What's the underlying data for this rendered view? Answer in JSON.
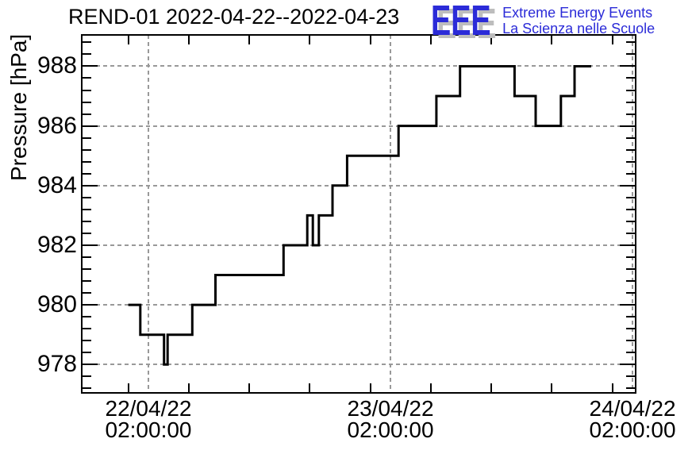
{
  "header": {
    "title": "REND-01 2022-04-22--2022-04-23",
    "logo": {
      "acronym": "EEE",
      "line1": "Extreme Energy Events",
      "line2": "La Scienza nelle Scuole",
      "text_color": "#2b2bd8",
      "shadow_color": "#bdbdbd"
    }
  },
  "chart_data": {
    "type": "line",
    "line_style": "step-post",
    "title": "REND-01 2022-04-22--2022-04-23",
    "xlabel": "",
    "ylabel": "Pressure [hPa]",
    "x_unit": "hours since 2022-04-22 00:00:00",
    "xlim": [
      -4.61,
      50.31
    ],
    "ylim": [
      977.05,
      989.05
    ],
    "grid": "dashed-major",
    "grid_color": "#999999",
    "line_color": "#000000",
    "frame_color": "#000000",
    "y_major_ticks": [
      978,
      980,
      982,
      984,
      986,
      988
    ],
    "y_minor_step": 0.4,
    "x_minor_step_hours": 6,
    "x_major_ticks": [
      {
        "hours": 2,
        "line1": "22/04/22",
        "line2": "02:00:00"
      },
      {
        "hours": 26,
        "line1": "23/04/22",
        "line2": "02:00:00"
      },
      {
        "hours": 50,
        "line1": "24/04/22",
        "line2": "02:00:00"
      }
    ],
    "series": [
      {
        "name": "pressure_hPa",
        "points": [
          [
            0.0,
            980
          ],
          [
            1.2,
            980
          ],
          [
            1.2,
            979
          ],
          [
            3.55,
            979
          ],
          [
            3.55,
            978
          ],
          [
            3.9,
            978
          ],
          [
            3.9,
            979
          ],
          [
            6.35,
            979
          ],
          [
            6.35,
            980
          ],
          [
            8.65,
            980
          ],
          [
            8.65,
            981
          ],
          [
            15.4,
            981
          ],
          [
            15.4,
            982
          ],
          [
            17.75,
            982
          ],
          [
            17.75,
            983
          ],
          [
            18.3,
            983
          ],
          [
            18.3,
            982
          ],
          [
            18.9,
            982
          ],
          [
            18.9,
            983
          ],
          [
            20.25,
            983
          ],
          [
            20.25,
            984
          ],
          [
            21.7,
            984
          ],
          [
            21.7,
            985
          ],
          [
            26.8,
            985
          ],
          [
            26.8,
            986
          ],
          [
            30.55,
            986
          ],
          [
            30.55,
            987
          ],
          [
            32.9,
            987
          ],
          [
            32.9,
            988
          ],
          [
            38.3,
            988
          ],
          [
            38.3,
            987
          ],
          [
            40.4,
            987
          ],
          [
            40.4,
            986
          ],
          [
            42.9,
            986
          ],
          [
            42.9,
            987
          ],
          [
            44.25,
            987
          ],
          [
            44.25,
            988
          ],
          [
            45.9,
            988
          ]
        ]
      }
    ]
  }
}
